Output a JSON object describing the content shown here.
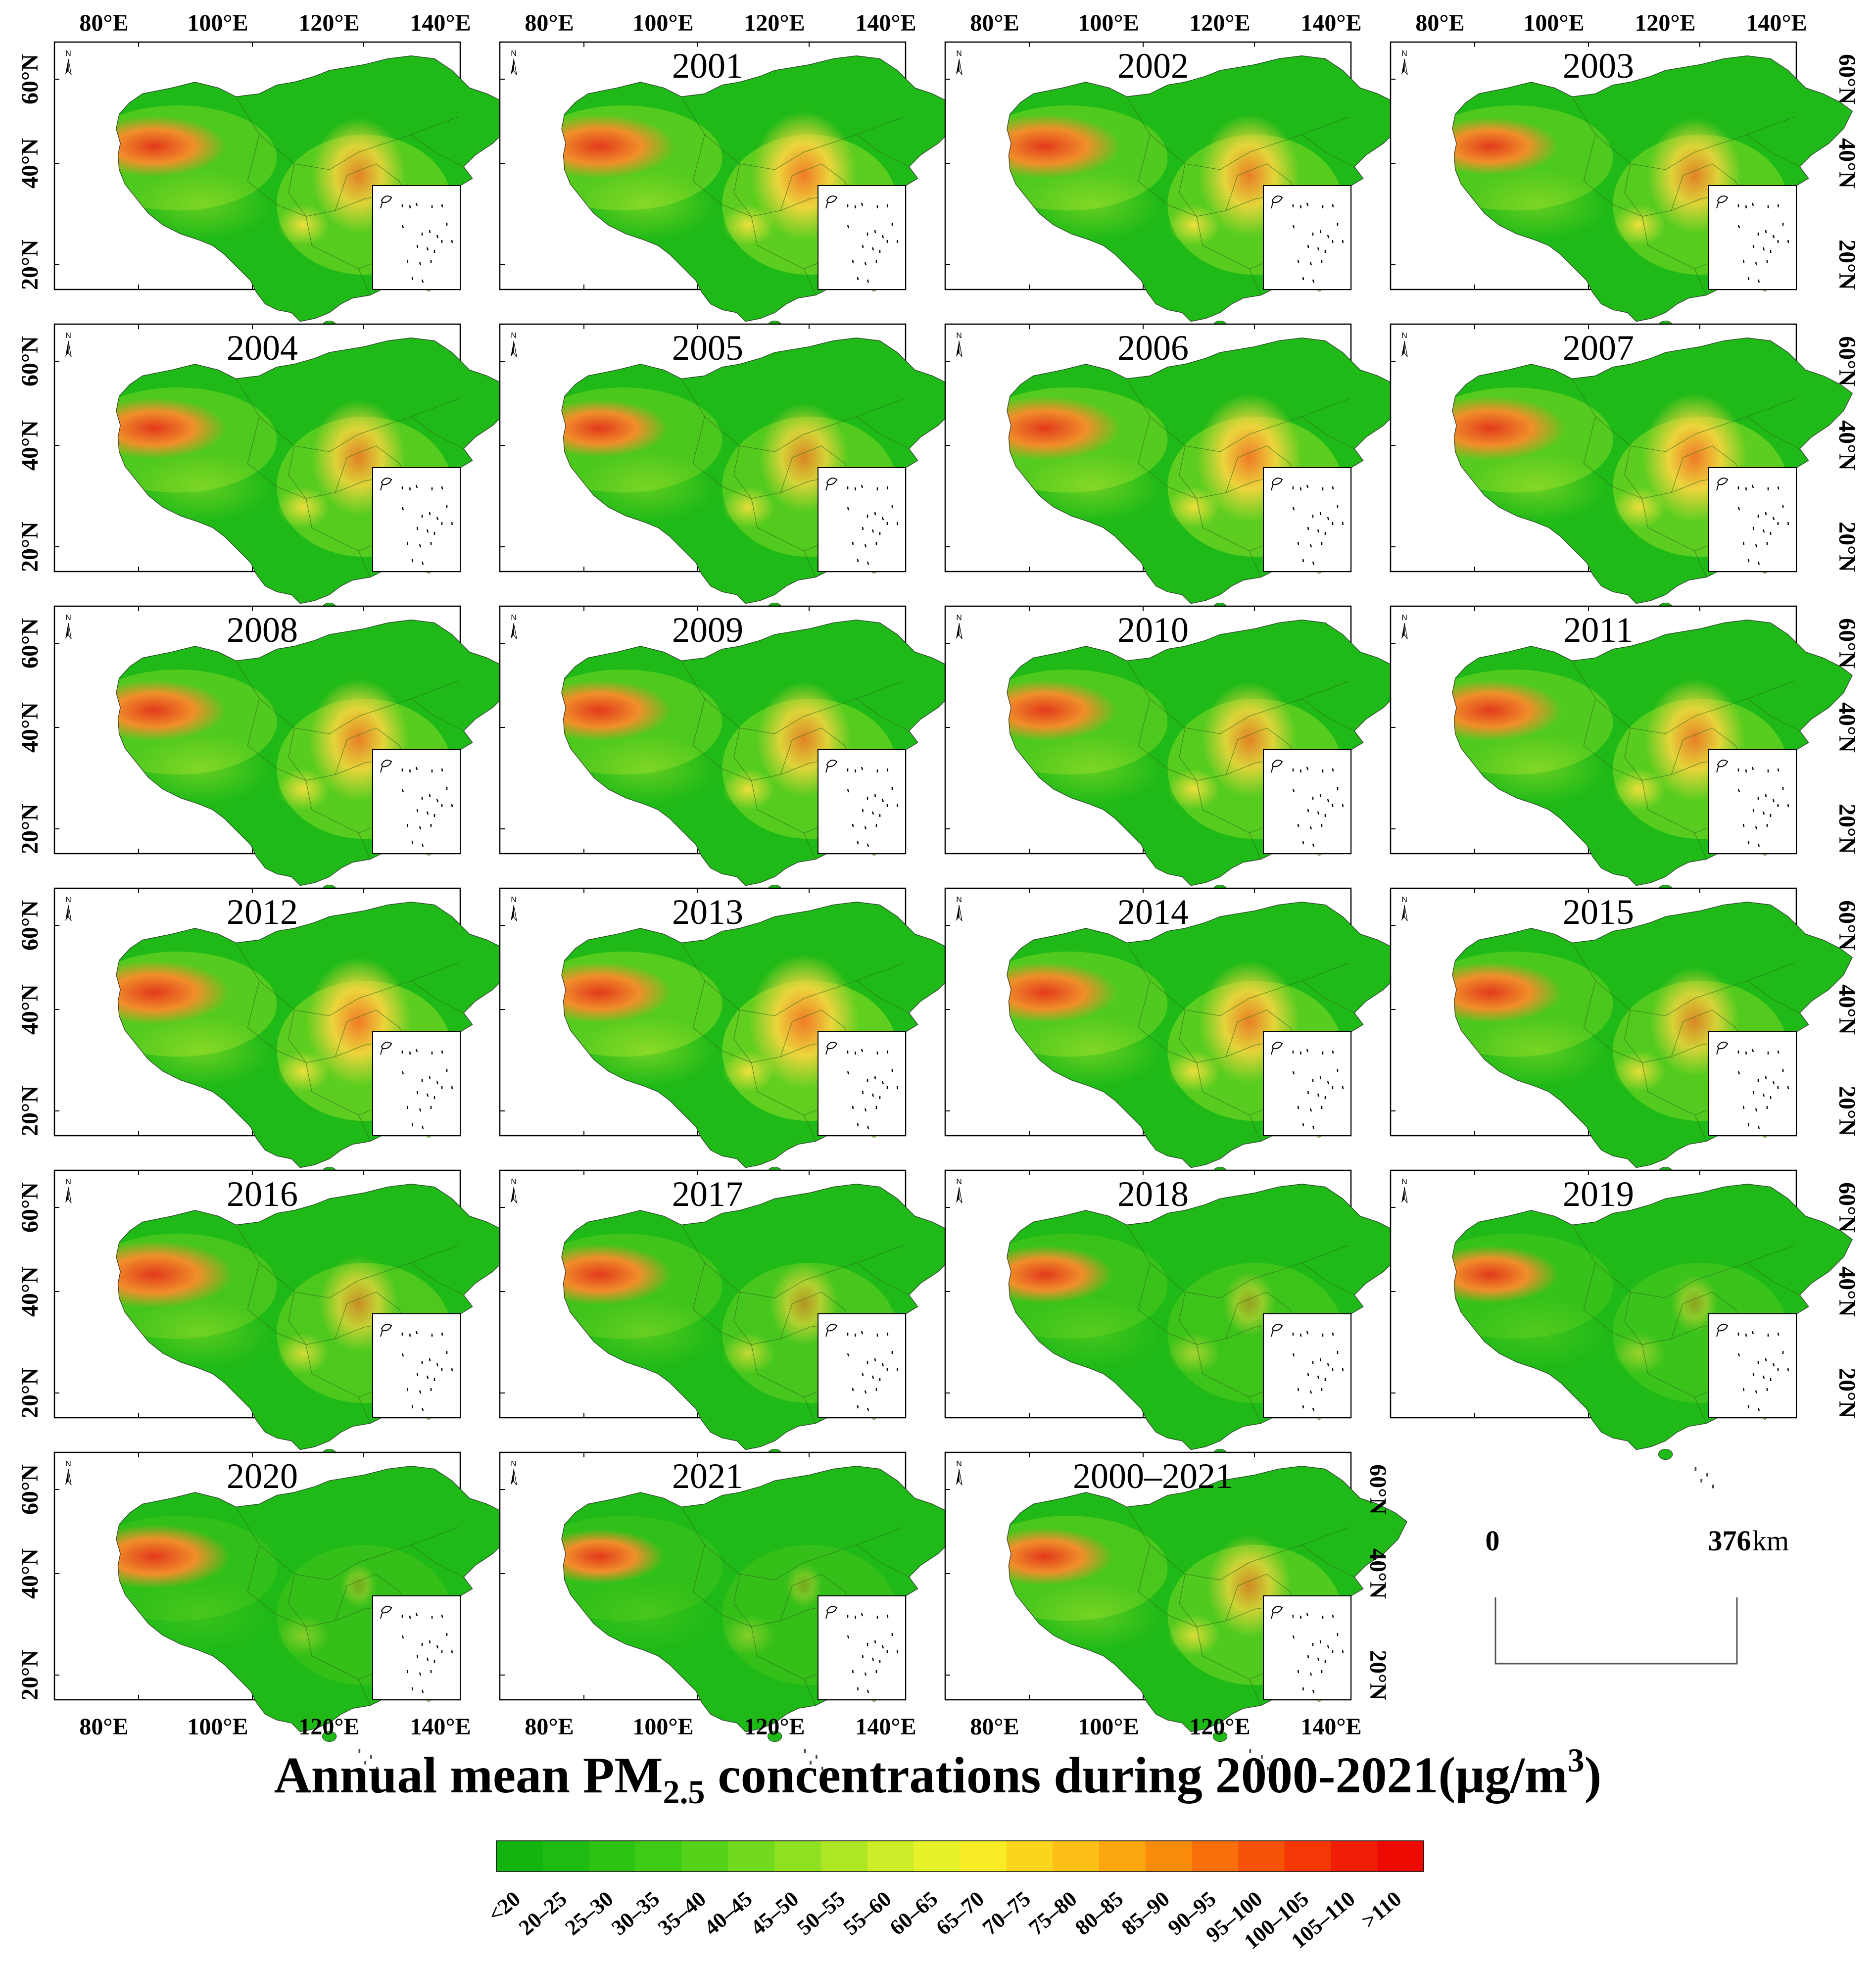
{
  "figure": {
    "title_main": "Annual mean PM",
    "title_sub": "2.5",
    "title_rest": " concentrations during 2000-2021(μg/m",
    "title_sup": "3",
    "title_close": ")"
  },
  "panels": [
    {
      "label": ""
    },
    {
      "label": "2001"
    },
    {
      "label": "2002"
    },
    {
      "label": "2003"
    },
    {
      "label": "2004"
    },
    {
      "label": "2005"
    },
    {
      "label": "2006"
    },
    {
      "label": "2007"
    },
    {
      "label": "2008"
    },
    {
      "label": "2009"
    },
    {
      "label": "2010"
    },
    {
      "label": "2011"
    },
    {
      "label": "2012"
    },
    {
      "label": "2013"
    },
    {
      "label": "2014"
    },
    {
      "label": "2015"
    },
    {
      "label": "2016"
    },
    {
      "label": "2017"
    },
    {
      "label": "2018"
    },
    {
      "label": "2019"
    },
    {
      "label": "2020"
    },
    {
      "label": "2021"
    },
    {
      "label": "2000–2021"
    }
  ],
  "north_arrow_letter": "N",
  "axes": {
    "lon_labels": [
      "80°E",
      "100°E",
      "120°E",
      "140°E"
    ],
    "lat_labels": [
      "60°N",
      "40°N",
      "20°N"
    ]
  },
  "scale_bar": {
    "start": "0",
    "end": "376",
    "unit": "km"
  },
  "legend": {
    "classes": [
      "<20",
      "20–25",
      "25–30",
      "30–35",
      "35–40",
      "40–45",
      "45–50",
      "50–55",
      "55–60",
      "60–65",
      "65–70",
      "70–75",
      "75–80",
      "80–85",
      "85–90",
      "90–95",
      "95–100",
      "100–105",
      "105–110",
      ">110"
    ],
    "colors": [
      "#12b40e",
      "#1ebc12",
      "#2cc314",
      "#3ecb16",
      "#55d31a",
      "#71da1e",
      "#8fe021",
      "#ade625",
      "#cced28",
      "#e8f22b",
      "#f8ec24",
      "#fbd51d",
      "#fbbf16",
      "#fca610",
      "#fb8b0b",
      "#f96f08",
      "#f65206",
      "#f33805",
      "#f01e04",
      "#ec0a03"
    ]
  },
  "map_colors": {
    "low": "#1fba17",
    "mid": "#7fd925",
    "yellow": "#e8e43a",
    "orange": "#f09a2a",
    "red": "#e23a1b",
    "border": "#222222",
    "frame": "#000000"
  }
}
